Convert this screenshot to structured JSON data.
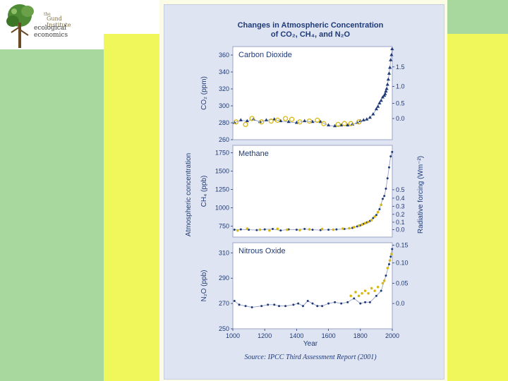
{
  "logo": {
    "line1": "the",
    "line2": "Gund Institute",
    "line3": "ecological",
    "line4": "economics"
  },
  "colors": {
    "background_green": "#a8d89e",
    "background_yellow": "#f0f75a",
    "figure_bg": "#dfe4f2",
    "axis_text": "#1e3a78",
    "ice_core_marker": "#1e3a78",
    "firn_marker": "#d8b812"
  },
  "chart_data": {
    "type": "scatter",
    "title_line1": "Changes in Atmospheric Concentration",
    "title_line2": "of CO₂, CH₄, and N₂O",
    "source": "Source: IPCC Third Assessment Report (2001)",
    "x": {
      "label": "Year",
      "range": [
        1000,
        2000
      ],
      "ticks": [
        "1000",
        "1200",
        "1400",
        "1600",
        "1800",
        "2000"
      ]
    },
    "shared_left_label": "Atmospheric concentration",
    "shared_right_label": "Radiative forcing (Wm⁻²)",
    "grid": false,
    "panels": [
      {
        "name": "Carbon Dioxide",
        "ylabel": "CO₂ (ppm)",
        "ylim": [
          260,
          370
        ],
        "yticks": [
          "260",
          "280",
          "300",
          "320",
          "340",
          "360"
        ],
        "forcing_ticks": [
          "0.0",
          "0.5",
          "1.0",
          "1.5"
        ],
        "forcing_at": [
          285,
          303,
          323,
          346
        ],
        "series": [
          {
            "values": [
              [
                1010,
                280
              ],
              [
                1050,
                283
              ],
              [
                1090,
                282
              ],
              [
                1130,
                284
              ],
              [
                1170,
                281
              ],
              [
                1210,
                283
              ],
              [
                1260,
                284
              ],
              [
                1300,
                282
              ],
              [
                1350,
                281
              ],
              [
                1400,
                280
              ],
              [
                1450,
                282
              ],
              [
                1500,
                281
              ],
              [
                1550,
                281
              ],
              [
                1600,
                277
              ],
              [
                1640,
                276
              ],
              [
                1680,
                277
              ],
              [
                1720,
                277
              ],
              [
                1750,
                278
              ],
              [
                1780,
                280
              ],
              [
                1800,
                282
              ],
              [
                1820,
                283
              ],
              [
                1840,
                284
              ],
              [
                1860,
                286
              ],
              [
                1880,
                290
              ],
              [
                1900,
                296
              ],
              [
                1910,
                299
              ],
              [
                1920,
                303
              ],
              [
                1930,
                306
              ],
              [
                1940,
                310
              ],
              [
                1950,
                312
              ],
              [
                1955,
                314
              ],
              [
                1960,
                317
              ],
              [
                1965,
                320
              ],
              [
                1970,
                325
              ],
              [
                1975,
                331
              ],
              [
                1980,
                338
              ],
              [
                1985,
                345
              ],
              [
                1990,
                354
              ],
              [
                1995,
                360
              ],
              [
                1999,
                367
              ]
            ]
          },
          {
            "values": [
              [
                1020,
                281
              ],
              [
                1080,
                278
              ],
              [
                1120,
                285
              ],
              [
                1180,
                281
              ],
              [
                1240,
                282
              ],
              [
                1280,
                283
              ],
              [
                1330,
                285
              ],
              [
                1370,
                284
              ],
              [
                1420,
                281
              ],
              [
                1480,
                282
              ],
              [
                1530,
                283
              ],
              [
                1570,
                279
              ],
              [
                1660,
                278
              ],
              [
                1700,
                279
              ],
              [
                1740,
                279
              ],
              [
                1790,
                281
              ]
            ]
          }
        ]
      },
      {
        "name": "Methane",
        "ylabel": "CH₄ (ppb)",
        "ylim": [
          600,
          1850
        ],
        "yticks": [
          "750",
          "1000",
          "1250",
          "1500",
          "1750"
        ],
        "forcing_ticks": [
          "0.0",
          "0.1",
          "0.2",
          "0.3",
          "0.4",
          "0.5"
        ],
        "forcing_at": [
          700,
          803,
          910,
          1020,
          1130,
          1245
        ],
        "series": [
          {
            "values": [
              [
                1010,
                700
              ],
              [
                1050,
                705
              ],
              [
                1100,
                700
              ],
              [
                1150,
                695
              ],
              [
                1200,
                705
              ],
              [
                1250,
                710
              ],
              [
                1300,
                690
              ],
              [
                1350,
                705
              ],
              [
                1400,
                700
              ],
              [
                1450,
                710
              ],
              [
                1500,
                700
              ],
              [
                1550,
                695
              ],
              [
                1600,
                700
              ],
              [
                1650,
                705
              ],
              [
                1700,
                710
              ],
              [
                1750,
                725
              ],
              [
                1780,
                745
              ],
              [
                1800,
                760
              ],
              [
                1820,
                780
              ],
              [
                1840,
                800
              ],
              [
                1860,
                820
              ],
              [
                1880,
                860
              ],
              [
                1900,
                900
              ],
              [
                1920,
                980
              ],
              [
                1940,
                1120
              ],
              [
                1950,
                1160
              ],
              [
                1960,
                1260
              ],
              [
                1970,
                1400
              ],
              [
                1980,
                1550
              ],
              [
                1990,
                1700
              ],
              [
                1999,
                1760
              ]
            ]
          },
          {
            "values": [
              [
                1030,
                690
              ],
              [
                1090,
                715
              ],
              [
                1170,
                700
              ],
              [
                1230,
                690
              ],
              [
                1280,
                712
              ],
              [
                1340,
                700
              ],
              [
                1420,
                695
              ],
              [
                1480,
                705
              ],
              [
                1560,
                710
              ],
              [
                1630,
                700
              ],
              [
                1690,
                715
              ],
              [
                1730,
                720
              ],
              [
                1760,
                735
              ],
              [
                1790,
                755
              ],
              [
                1810,
                770
              ],
              [
                1830,
                790
              ],
              [
                1850,
                805
              ],
              [
                1870,
                830
              ],
              [
                1890,
                880
              ],
              [
                1910,
                940
              ],
              [
                1930,
                1040
              ]
            ]
          }
        ]
      },
      {
        "name": "Nitrous Oxide",
        "ylabel": "N₂O (ppb)",
        "ylim": [
          250,
          318
        ],
        "yticks": [
          "250",
          "270",
          "290",
          "310"
        ],
        "forcing_ticks": [
          "0.0",
          "0.05",
          "0.10",
          "0.15"
        ],
        "forcing_at": [
          270,
          286,
          302,
          316
        ],
        "series": [
          {
            "values": [
              [
                1010,
                272
              ],
              [
                1040,
                269
              ],
              [
                1080,
                268
              ],
              [
                1120,
                267
              ],
              [
                1180,
                268
              ],
              [
                1220,
                269
              ],
              [
                1260,
                269
              ],
              [
                1290,
                268
              ],
              [
                1330,
                268
              ],
              [
                1380,
                269
              ],
              [
                1410,
                270
              ],
              [
                1440,
                268
              ],
              [
                1470,
                272
              ],
              [
                1500,
                270
              ],
              [
                1530,
                268
              ],
              [
                1560,
                268
              ],
              [
                1600,
                270
              ],
              [
                1640,
                271
              ],
              [
                1680,
                270
              ],
              [
                1720,
                271
              ],
              [
                1760,
                274
              ],
              [
                1800,
                270
              ],
              [
                1830,
                271
              ],
              [
                1860,
                271
              ],
              [
                1900,
                276
              ],
              [
                1930,
                280
              ],
              [
                1960,
                292
              ],
              [
                1980,
                301
              ],
              [
                1990,
                307
              ],
              [
                1999,
                313
              ]
            ]
          },
          {
            "values": [
              [
                1740,
                276
              ],
              [
                1770,
                279
              ],
              [
                1790,
                276
              ],
              [
                1810,
                278
              ],
              [
                1830,
                280
              ],
              [
                1850,
                278
              ],
              [
                1870,
                282
              ],
              [
                1890,
                280
              ],
              [
                1910,
                283
              ],
              [
                1940,
                286
              ],
              [
                1950,
                288
              ],
              [
                1970,
                298
              ],
              [
                1985,
                304
              ],
              [
                1995,
                309
              ]
            ]
          }
        ]
      }
    ]
  }
}
